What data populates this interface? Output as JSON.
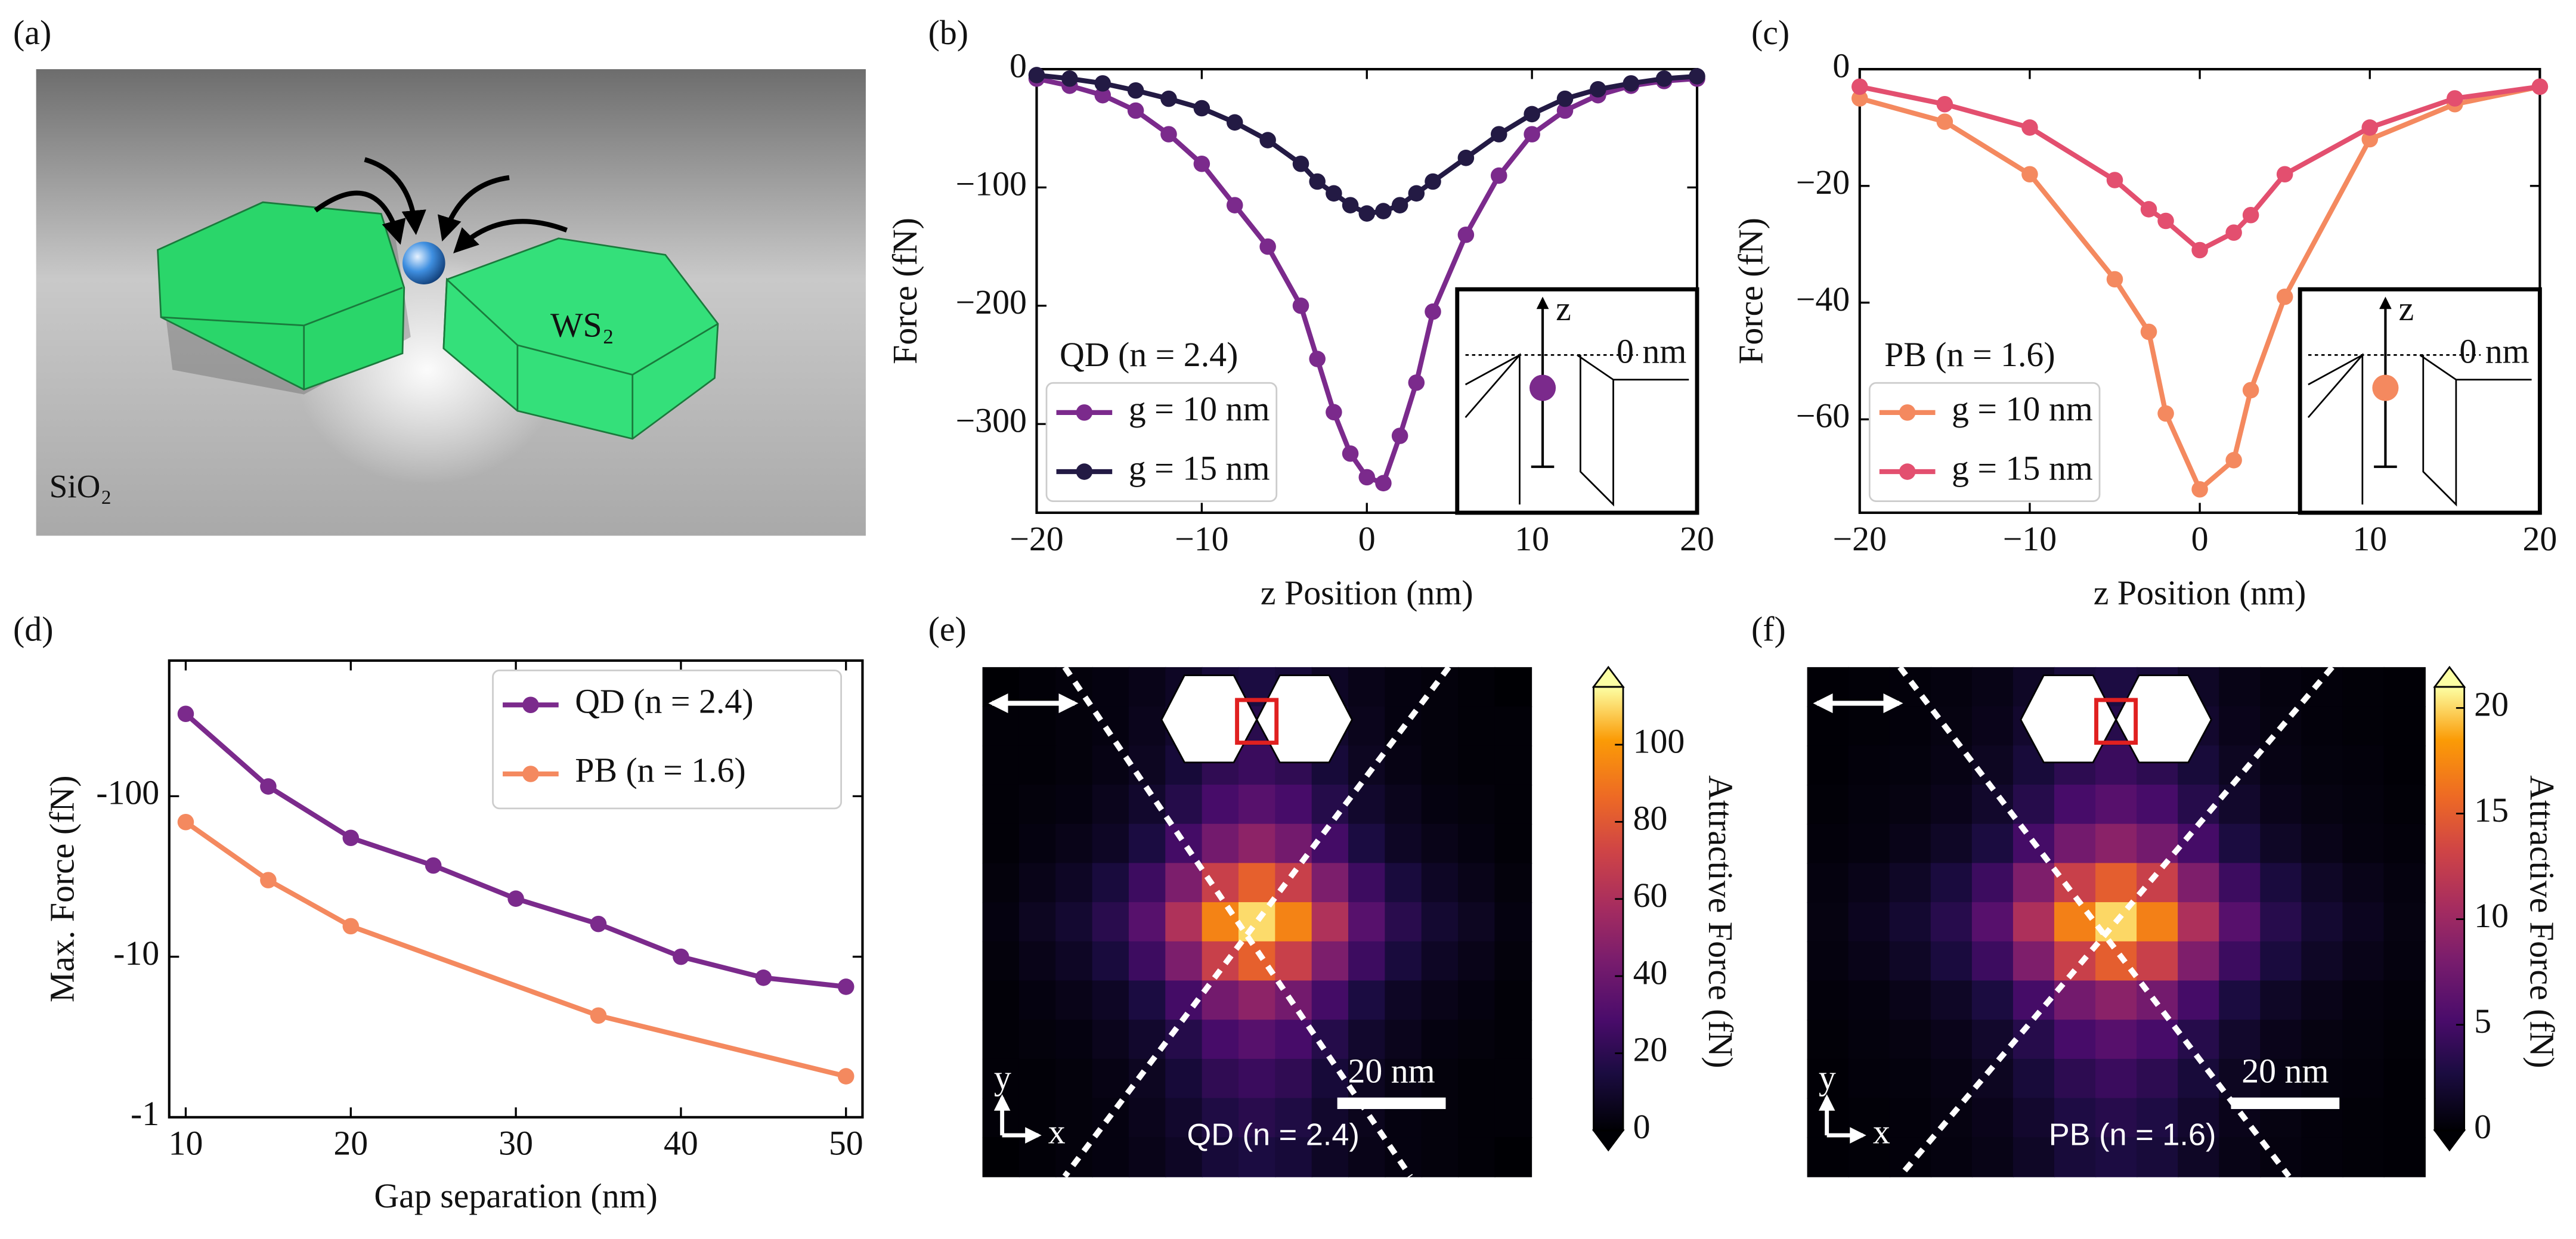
{
  "illustration": {
    "panel_label": "(a)",
    "substrate": "SiO₂",
    "material": "WS₂"
  },
  "chart_data": [
    {
      "type": "line",
      "panel_label": "(b)",
      "xlabel": "z Position (nm)",
      "ylabel": "Force (fN)",
      "annotation": "QD (n = 2.4)",
      "inset": {
        "axis": "z",
        "origin": "0 nm"
      },
      "x": [
        -20,
        -18,
        -16,
        -14,
        -12,
        -10,
        -8,
        -6,
        -4,
        -3,
        -2,
        -1,
        0,
        1,
        2,
        3,
        4,
        6,
        8,
        10,
        12,
        14,
        16,
        18,
        20
      ],
      "series": [
        {
          "name": "g = 10 nm",
          "color": "#7b2a8c",
          "values": [
            -8,
            -14,
            -22,
            -35,
            -55,
            -80,
            -115,
            -150,
            -200,
            -245,
            -290,
            -325,
            -345,
            -350,
            -310,
            -265,
            -205,
            -140,
            -90,
            -55,
            -35,
            -22,
            -14,
            -10,
            -8
          ]
        },
        {
          "name": "g = 15 nm",
          "color": "#231a44",
          "values": [
            -5,
            -8,
            -12,
            -18,
            -25,
            -33,
            -45,
            -60,
            -80,
            -95,
            -105,
            -115,
            -122,
            -120,
            -115,
            -105,
            -95,
            -75,
            -55,
            -38,
            -25,
            -17,
            -12,
            -8,
            -6
          ]
        }
      ],
      "xlim": [
        -20,
        20
      ],
      "xticks": [
        {
          "value": -20,
          "label": "−20"
        },
        {
          "value": -10,
          "label": "−10"
        },
        0,
        10,
        20
      ],
      "ylim": [
        -375,
        0
      ],
      "yticks": [
        {
          "value": -300,
          "label": "−300"
        },
        {
          "value": -200,
          "label": "−200"
        },
        {
          "value": -100,
          "label": "−100"
        },
        0
      ],
      "legend": "lower left"
    },
    {
      "type": "line",
      "panel_label": "(c)",
      "xlabel": "z Position (nm)",
      "ylabel": "Force (fN)",
      "annotation": "PB (n = 1.6)",
      "inset": {
        "axis": "z",
        "origin": "0 nm"
      },
      "x": [
        -20,
        -15,
        -10,
        -5,
        -3,
        -2,
        0,
        2,
        3,
        5,
        10,
        15,
        20
      ],
      "series": [
        {
          "name": "g = 10 nm",
          "color": "#f4895f",
          "values": [
            -5,
            -9,
            -18,
            -36,
            -45,
            -59,
            -72,
            -67,
            -55,
            -39,
            -12,
            -6,
            -3
          ]
        },
        {
          "name": "g = 15 nm",
          "color": "#e34f6f",
          "values": [
            -3,
            -6,
            -10,
            -19,
            -24,
            -26,
            -31,
            -28,
            -25,
            -18,
            -10,
            -5,
            -3
          ]
        }
      ],
      "xlim": [
        -20,
        20
      ],
      "xticks": [
        {
          "value": -20,
          "label": "−20"
        },
        {
          "value": -10,
          "label": "−10"
        },
        0,
        10,
        20
      ],
      "ylim": [
        -76,
        0
      ],
      "yticks": [
        {
          "value": -60,
          "label": "−60"
        },
        {
          "value": -40,
          "label": "−40"
        },
        {
          "value": -20,
          "label": "−20"
        },
        0
      ],
      "legend": "lower left"
    },
    {
      "type": "line",
      "panel_label": "(d)",
      "xlabel": "Gap separation (nm)",
      "ylabel": "Max. Force (fN)",
      "log_scale": true,
      "series": [
        {
          "name": "QD (n = 2.4)",
          "color": "#7b2a8c",
          "x": [
            10,
            15,
            20,
            25,
            30,
            35,
            40,
            45,
            50
          ],
          "values": [
            -326,
            -115,
            -55,
            -37,
            -23,
            -16,
            -10,
            -7.4,
            -6.5
          ]
        },
        {
          "name": "PB (n = 1.6)",
          "color": "#f4895f",
          "x": [
            10,
            15,
            20,
            35,
            50
          ],
          "values": [
            -69,
            -30,
            -15.5,
            -4.3,
            -1.8
          ]
        }
      ],
      "xlim": [
        9,
        51
      ],
      "xticks": [
        10,
        20,
        30,
        40,
        50
      ],
      "ylim": [
        -1,
        -700
      ],
      "yticks": [
        -1,
        -10,
        -100
      ],
      "legend": "upper right"
    },
    {
      "type": "heatmap",
      "panel_label": "(e)",
      "annotation": "QD (n = 2.4)",
      "scale_bar": "20 nm",
      "axis_x": "x",
      "axis_y": "y",
      "colormap": "inferno",
      "zlim": [
        0,
        115
      ],
      "colorbar_ticks": [
        0,
        20,
        40,
        60,
        80,
        100
      ],
      "colorbar_label": "Attractive Force (fN)",
      "values": [
        [
          0,
          1,
          2,
          3,
          5,
          8,
          13,
          15,
          13,
          8,
          5,
          3,
          2,
          1,
          0
        ],
        [
          1,
          1,
          2,
          3,
          6,
          10,
          16,
          19,
          16,
          10,
          6,
          3,
          2,
          1,
          1
        ],
        [
          1,
          1,
          2,
          4,
          7,
          13,
          21,
          24,
          21,
          13,
          7,
          4,
          2,
          1,
          1
        ],
        [
          1,
          2,
          3,
          6,
          10,
          18,
          28,
          33,
          28,
          18,
          10,
          6,
          3,
          2,
          1
        ],
        [
          1,
          3,
          5,
          8,
          15,
          27,
          42,
          50,
          42,
          27,
          15,
          8,
          5,
          3,
          1
        ],
        [
          2,
          5,
          8,
          14,
          25,
          45,
          70,
          83,
          70,
          45,
          25,
          14,
          8,
          5,
          2
        ],
        [
          3,
          7,
          11,
          19,
          33,
          61,
          94,
          110,
          94,
          61,
          33,
          19,
          11,
          7,
          3
        ],
        [
          2,
          5,
          8,
          14,
          25,
          45,
          70,
          83,
          70,
          45,
          25,
          14,
          8,
          5,
          2
        ],
        [
          1,
          3,
          5,
          8,
          15,
          27,
          42,
          50,
          42,
          27,
          15,
          8,
          5,
          3,
          1
        ],
        [
          1,
          2,
          3,
          6,
          10,
          18,
          28,
          33,
          28,
          18,
          10,
          6,
          3,
          2,
          1
        ],
        [
          1,
          1,
          2,
          4,
          7,
          13,
          21,
          24,
          21,
          13,
          7,
          4,
          2,
          1,
          1
        ],
        [
          1,
          1,
          2,
          3,
          6,
          10,
          16,
          19,
          16,
          10,
          6,
          3,
          2,
          1,
          1
        ],
        [
          0,
          1,
          2,
          3,
          5,
          8,
          13,
          15,
          13,
          8,
          5,
          3,
          2,
          1,
          0
        ]
      ]
    },
    {
      "type": "heatmap",
      "panel_label": "(f)",
      "annotation": "PB (n = 1.6)",
      "scale_bar": "20 nm",
      "axis_x": "x",
      "axis_y": "y",
      "colormap": "inferno",
      "zlim": [
        0,
        21
      ],
      "colorbar_ticks": [
        0,
        5,
        10,
        15,
        20
      ],
      "colorbar_label": "Attractive Force (fN)",
      "values": [
        [
          0.1,
          0.2,
          0.3,
          0.5,
          0.8,
          1.5,
          2.4,
          2.8,
          2.4,
          1.5,
          0.8,
          0.5,
          0.3,
          0.2,
          0.1
        ],
        [
          0.1,
          0.2,
          0.3,
          0.6,
          1,
          1.9,
          2.9,
          3.4,
          2.9,
          1.9,
          1,
          0.6,
          0.3,
          0.2,
          0.1
        ],
        [
          0.1,
          0.3,
          0.4,
          0.7,
          1.3,
          2.4,
          3.7,
          4.4,
          3.7,
          2.4,
          1.3,
          0.7,
          0.4,
          0.3,
          0.1
        ],
        [
          0.2,
          0.4,
          0.6,
          1,
          1.8,
          3.3,
          5.1,
          6,
          5.1,
          3.3,
          1.8,
          1,
          0.6,
          0.4,
          0.2
        ],
        [
          0.3,
          0.5,
          0.9,
          1.5,
          2.7,
          5,
          7.7,
          9,
          7.7,
          5,
          2.7,
          1.5,
          0.9,
          0.5,
          0.3
        ],
        [
          0.5,
          0.9,
          1.5,
          2.6,
          4.5,
          8.3,
          12.8,
          15,
          12.8,
          8.3,
          4.5,
          2.6,
          1.5,
          0.9,
          0.5
        ],
        [
          0.6,
          1.2,
          2,
          3.4,
          6,
          11,
          17,
          20,
          17,
          11,
          6,
          3.4,
          2,
          1.2,
          0.6
        ],
        [
          0.5,
          0.9,
          1.5,
          2.6,
          4.5,
          8.3,
          12.8,
          15,
          12.8,
          8.3,
          4.5,
          2.6,
          1.5,
          0.9,
          0.5
        ],
        [
          0.3,
          0.5,
          0.9,
          1.5,
          2.7,
          5,
          7.7,
          9,
          7.7,
          5,
          2.7,
          1.5,
          0.9,
          0.5,
          0.3
        ],
        [
          0.2,
          0.4,
          0.6,
          1,
          1.8,
          3.3,
          5.1,
          6,
          5.1,
          3.3,
          1.8,
          1,
          0.6,
          0.4,
          0.2
        ],
        [
          0.1,
          0.3,
          0.4,
          0.7,
          1.3,
          2.4,
          3.7,
          4.4,
          3.7,
          2.4,
          1.3,
          0.7,
          0.4,
          0.3,
          0.1
        ],
        [
          0.1,
          0.2,
          0.3,
          0.6,
          1,
          1.9,
          2.9,
          3.4,
          2.9,
          1.9,
          1,
          0.6,
          0.3,
          0.2,
          0.1
        ],
        [
          0.1,
          0.2,
          0.3,
          0.5,
          0.8,
          1.5,
          2.4,
          2.8,
          2.4,
          1.5,
          0.8,
          0.5,
          0.3,
          0.2,
          0.1
        ]
      ]
    }
  ]
}
